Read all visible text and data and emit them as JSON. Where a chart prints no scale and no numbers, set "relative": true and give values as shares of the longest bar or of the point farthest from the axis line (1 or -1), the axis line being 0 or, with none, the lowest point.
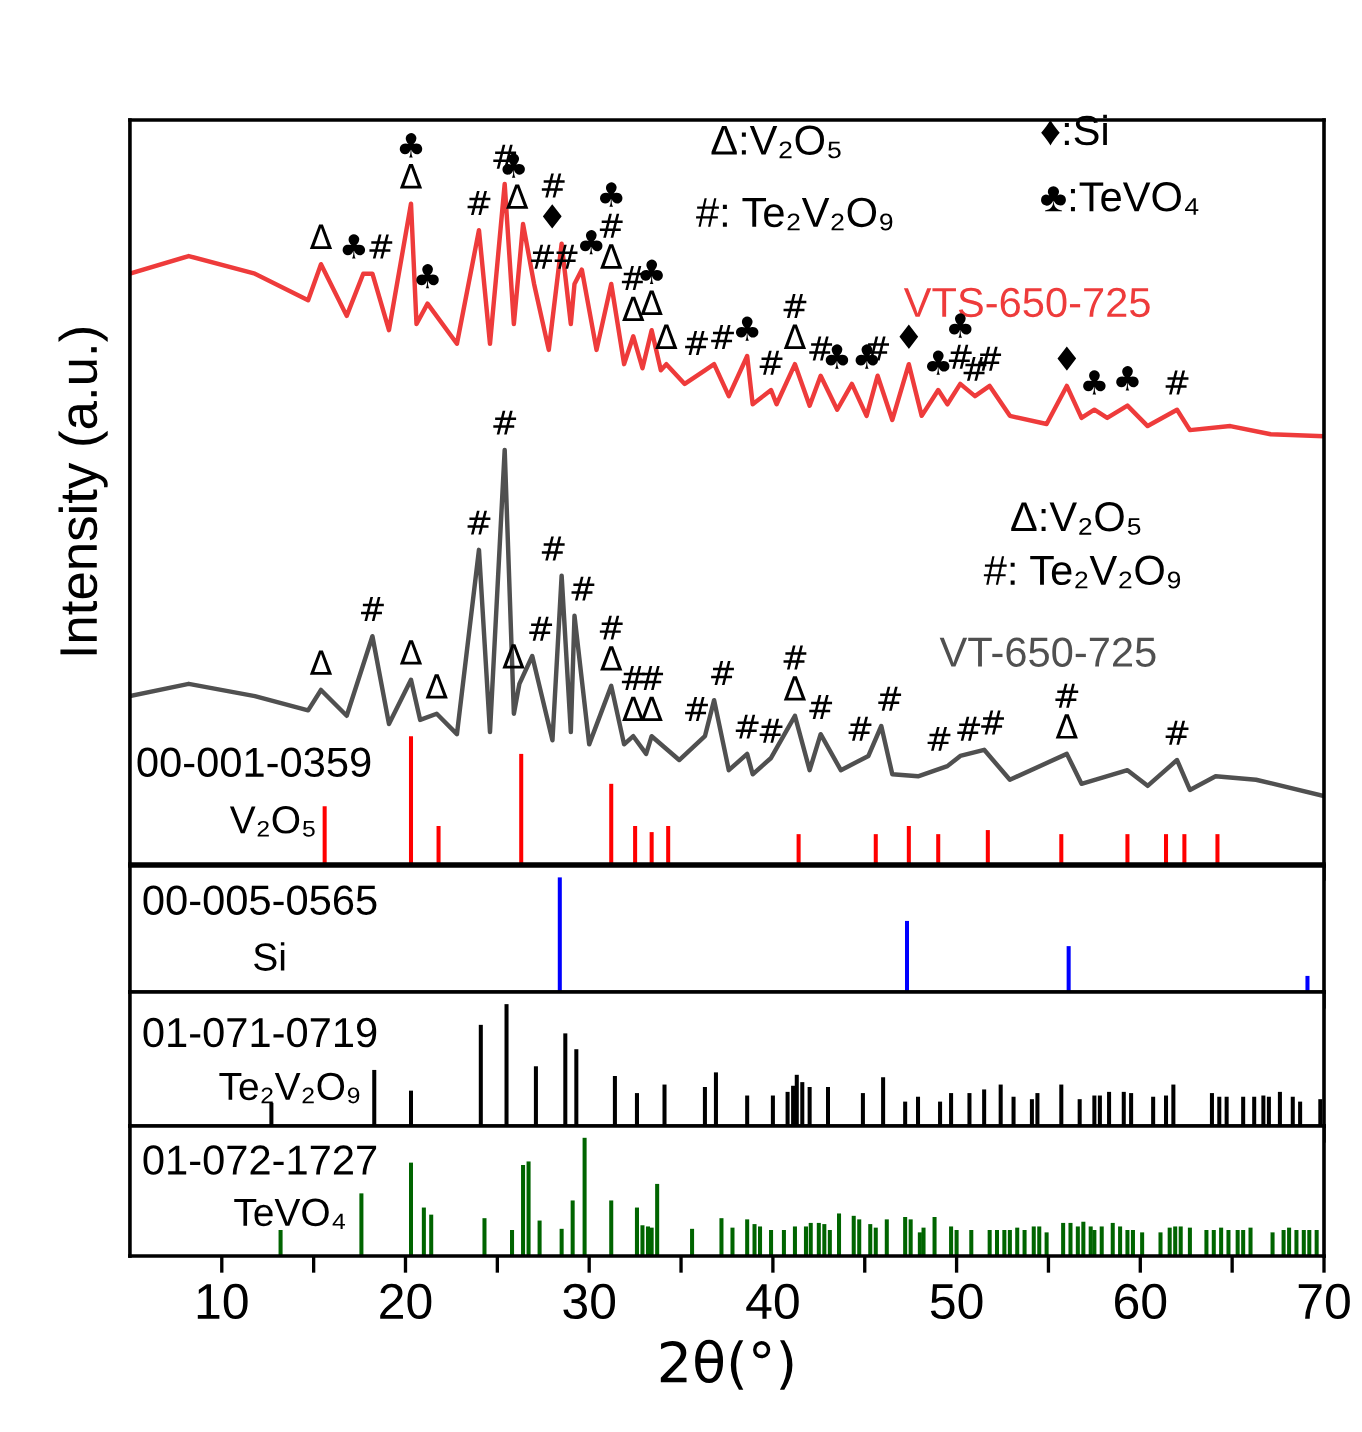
{
  "chart_data": [
    {
      "type": "line",
      "relative": true,
      "xlim": [
        5,
        70
      ],
      "xticks": [
        10,
        {
          "value": 15,
          "label": null
        },
        20,
        {
          "value": 25,
          "label": null
        },
        30,
        {
          "value": 35,
          "label": null
        },
        40,
        {
          "value": 45,
          "label": null
        },
        50,
        {
          "value": 55,
          "label": null
        },
        60,
        {
          "value": 65,
          "label": null
        },
        70
      ],
      "tick_labels": false,
      "ylabel": "Intensity (a.u.)",
      "series": [
        {
          "name": "VTS-650-725",
          "type": "line",
          "color": "#ee3b3b",
          "x": [
            5,
            8.2,
            11.8,
            14.7,
            15.4,
            16.8,
            17.7,
            18.2,
            19.1,
            20.3,
            20.6,
            21.2,
            22.8,
            24.0,
            24.6,
            25.4,
            25.9,
            26.4,
            27.0,
            27.8,
            28.5,
            29.0,
            29.2,
            29.6,
            30.4,
            31.2,
            31.9,
            32.4,
            32.9,
            33.4,
            33.9,
            34.2,
            35.2,
            36.3,
            36.8,
            37.6,
            38.6,
            38.9,
            39.9,
            40.2,
            41.2,
            42.0,
            42.6,
            43.5,
            44.3,
            45.1,
            45.7,
            46.5,
            47.4,
            48.1,
            49.0,
            49.5,
            50.2,
            51.0,
            51.8,
            52.9,
            54.9,
            56.0,
            56.8,
            57.5,
            58.2,
            59.3,
            60.4,
            62.0,
            62.7,
            64.9,
            67.1,
            70.0
          ],
          "values": [
            0.868,
            0.894,
            0.868,
            0.829,
            0.882,
            0.806,
            0.868,
            0.868,
            0.785,
            0.971,
            0.794,
            0.824,
            0.765,
            0.932,
            0.765,
            1.0,
            0.794,
            0.941,
            0.853,
            0.756,
            0.912,
            0.794,
            0.853,
            0.874,
            0.756,
            0.853,
            0.735,
            0.776,
            0.729,
            0.785,
            0.726,
            0.735,
            0.706,
            0.726,
            0.735,
            0.688,
            0.747,
            0.676,
            0.697,
            0.676,
            0.735,
            0.674,
            0.718,
            0.668,
            0.706,
            0.659,
            0.718,
            0.653,
            0.735,
            0.659,
            0.697,
            0.676,
            0.706,
            0.688,
            0.703,
            0.659,
            0.647,
            0.703,
            0.656,
            0.668,
            0.656,
            0.674,
            0.644,
            0.668,
            0.638,
            0.644,
            0.632,
            0.629
          ]
        },
        {
          "name": "VT-650-725",
          "type": "line",
          "color": "#505050",
          "x": [
            5,
            8.2,
            11.8,
            14.7,
            15.4,
            16.8,
            18.2,
            19.1,
            20.3,
            20.8,
            21.7,
            22.8,
            24.0,
            24.6,
            25.4,
            25.9,
            26.2,
            26.9,
            28.0,
            28.5,
            29.0,
            29.2,
            30.0,
            31.2,
            31.9,
            32.4,
            33.1,
            33.4,
            34.9,
            36.3,
            36.8,
            37.6,
            38.6,
            38.9,
            39.9,
            41.2,
            42.0,
            42.6,
            43.7,
            45.2,
            45.9,
            46.5,
            47.9,
            49.5,
            50.2,
            51.5,
            52.9,
            56.0,
            56.8,
            59.3,
            60.4,
            62.0,
            62.7,
            64.1,
            66.3,
            70.0
          ],
          "values": [
            0.247,
            0.265,
            0.247,
            0.226,
            0.256,
            0.218,
            0.335,
            0.206,
            0.271,
            0.212,
            0.221,
            0.191,
            0.462,
            0.194,
            0.609,
            0.221,
            0.265,
            0.306,
            0.182,
            0.424,
            0.194,
            0.365,
            0.176,
            0.262,
            0.176,
            0.188,
            0.162,
            0.188,
            0.153,
            0.188,
            0.241,
            0.138,
            0.162,
            0.132,
            0.156,
            0.218,
            0.138,
            0.191,
            0.138,
            0.159,
            0.203,
            0.132,
            0.129,
            0.144,
            0.159,
            0.168,
            0.124,
            0.162,
            0.118,
            0.138,
            0.115,
            0.153,
            0.109,
            0.129,
            0.124,
            0.1
          ]
        },
        {
          "name": "V₂O₅",
          "type": "bar",
          "color": "#ff0000",
          "x": [
            15.6,
            20.3,
            21.8,
            26.3,
            31.2,
            32.5,
            33.4,
            34.3,
            41.4,
            45.6,
            47.4,
            49.0,
            51.7,
            55.7,
            59.3,
            61.4,
            62.4,
            64.2
          ],
          "values": [
            0.085,
            0.188,
            0.056,
            0.162,
            0.118,
            0.056,
            0.047,
            0.056,
            0.044,
            0.044,
            0.056,
            0.044,
            0.05,
            0.044,
            0.044,
            0.044,
            0.044,
            0.044
          ]
        }
      ],
      "annotations": [
        "Δ:V₂O₅",
        "#: Te₂V₂O₉",
        "♦:Si",
        "♣:TeVO₄",
        "Δ:V₂O₅",
        "#: Te₂V₂O₉",
        "00-001-0359",
        {
          "text": "Δ",
          "x": 15.4,
          "y": 0.882
        },
        {
          "text": "♣",
          "x": 17.7,
          "y": 0.868
        },
        {
          "text": "#",
          "x": 18.2,
          "y": 0.868
        },
        {
          "text": "♣\nΔ",
          "x": 20.3,
          "y": 0.971
        },
        {
          "text": "♣",
          "x": 21.2,
          "y": 0.824
        },
        {
          "text": "#",
          "x": 24.0,
          "y": 0.932
        },
        {
          "text": "#",
          "x": 25.4,
          "y": 1.0
        },
        {
          "text": "♣\nΔ",
          "x": 26.4,
          "y": 0.941
        },
        {
          "text": "#",
          "x": 27.0,
          "y": 0.853
        },
        {
          "text": "#\n♦",
          "x": 28.5,
          "y": 0.912
        },
        {
          "text": "#",
          "x": 29.2,
          "y": 0.853
        },
        {
          "text": "♣",
          "x": 29.6,
          "y": 0.874
        },
        {
          "text": "♣\n#\nΔ",
          "x": 31.2,
          "y": 0.853
        },
        {
          "text": "#\nΔ",
          "x": 32.4,
          "y": 0.776
        },
        {
          "text": "♣\nΔ",
          "x": 33.4,
          "y": 0.785
        },
        {
          "text": "Δ",
          "x": 34.2,
          "y": 0.735
        },
        {
          "text": "#",
          "x": 36.3,
          "y": 0.726
        },
        {
          "text": "#",
          "x": 36.8,
          "y": 0.735
        },
        {
          "text": "♣",
          "x": 38.6,
          "y": 0.747
        },
        {
          "text": "#",
          "x": 39.9,
          "y": 0.697
        },
        {
          "text": "#\nΔ",
          "x": 41.2,
          "y": 0.735
        },
        {
          "text": "#",
          "x": 42.6,
          "y": 0.718
        },
        {
          "text": "♣♣",
          "x": 44.3,
          "y": 0.706
        },
        {
          "text": "#",
          "x": 45.7,
          "y": 0.718
        },
        {
          "text": "♦",
          "x": 47.4,
          "y": 0.735
        },
        {
          "text": "♣",
          "x": 49.0,
          "y": 0.697
        },
        {
          "text": "♣\n#",
          "x": 50.2,
          "y": 0.706
        },
        {
          "text": "#",
          "x": 51.0,
          "y": 0.688
        },
        {
          "text": "#",
          "x": 51.8,
          "y": 0.703
        },
        {
          "text": "♦",
          "x": 56.0,
          "y": 0.703
        },
        {
          "text": "♣",
          "x": 57.5,
          "y": 0.668
        },
        {
          "text": "♣",
          "x": 59.3,
          "y": 0.674
        },
        {
          "text": "#",
          "x": 62.0,
          "y": 0.668
        },
        {
          "text": "Δ",
          "x": 15.4,
          "y": 0.256
        },
        {
          "text": "#",
          "x": 18.2,
          "y": 0.335
        },
        {
          "text": "Δ",
          "x": 20.3,
          "y": 0.271
        },
        {
          "text": "Δ",
          "x": 21.7,
          "y": 0.221
        },
        {
          "text": "#",
          "x": 24.0,
          "y": 0.462
        },
        {
          "text": "#",
          "x": 25.4,
          "y": 0.609
        },
        {
          "text": "Δ",
          "x": 26.2,
          "y": 0.265
        },
        {
          "text": "#",
          "x": 26.9,
          "y": 0.306
        },
        {
          "text": "#",
          "x": 28.5,
          "y": 0.424
        },
        {
          "text": "#",
          "x": 29.2,
          "y": 0.365
        },
        {
          "text": "#\nΔ",
          "x": 31.2,
          "y": 0.262
        },
        {
          "text": "#\nΔ",
          "x": 32.4,
          "y": 0.188
        },
        {
          "text": "#\nΔ",
          "x": 33.4,
          "y": 0.188
        },
        {
          "text": "#",
          "x": 36.3,
          "y": 0.188
        },
        {
          "text": "#",
          "x": 36.8,
          "y": 0.241
        },
        {
          "text": "#",
          "x": 38.6,
          "y": 0.162
        },
        {
          "text": "#",
          "x": 39.9,
          "y": 0.156
        },
        {
          "text": "#\nΔ",
          "x": 41.2,
          "y": 0.218
        },
        {
          "text": "#",
          "x": 42.6,
          "y": 0.191
        },
        {
          "text": "#",
          "x": 45.2,
          "y": 0.159
        },
        {
          "text": "#",
          "x": 45.9,
          "y": 0.203
        },
        {
          "text": "#",
          "x": 49.5,
          "y": 0.144
        },
        {
          "text": "#",
          "x": 50.2,
          "y": 0.159
        },
        {
          "text": "#",
          "x": 51.5,
          "y": 0.168
        },
        {
          "text": "#\nΔ",
          "x": 56.0,
          "y": 0.162
        },
        {
          "text": "#",
          "x": 62.0,
          "y": 0.153
        }
      ]
    },
    {
      "type": "bar",
      "relative": true,
      "xlim": [
        5,
        70
      ],
      "xticks": [
        10,
        {
          "value": 15,
          "label": null
        },
        20,
        {
          "value": 25,
          "label": null
        },
        30,
        {
          "value": 35,
          "label": null
        },
        40,
        {
          "value": 45,
          "label": null
        },
        50,
        {
          "value": 55,
          "label": null
        },
        60,
        {
          "value": 65,
          "label": null
        },
        70
      ],
      "tick_labels": false,
      "series": [
        {
          "name": "Si",
          "color": "#0000ff",
          "x": [
            28.4,
            47.3,
            56.1,
            69.1
          ],
          "values": [
            1.0,
            0.62,
            0.4,
            0.14
          ]
        }
      ],
      "annotations": [
        "00-005-0565"
      ]
    },
    {
      "type": "bar",
      "relative": true,
      "xlim": [
        5,
        70
      ],
      "xticks": [
        10,
        {
          "value": 15,
          "label": null
        },
        20,
        {
          "value": 25,
          "label": null
        },
        30,
        {
          "value": 35,
          "label": null
        },
        40,
        {
          "value": 45,
          "label": null
        },
        50,
        {
          "value": 55,
          "label": null
        },
        60,
        {
          "value": 65,
          "label": null
        },
        70
      ],
      "tick_labels": false,
      "series": [
        {
          "name": "Te₂V₂O₉",
          "color": "#000000",
          "x": [
            12.7,
            18.3,
            20.3,
            24.1,
            25.5,
            27.1,
            28.7,
            29.3,
            31.4,
            32.6,
            34.1,
            36.3,
            36.9,
            38.6,
            40.0,
            40.8,
            41.1,
            41.3,
            41.6,
            42.0,
            43.0,
            44.9,
            46.0,
            47.2,
            47.9,
            49.1,
            49.7,
            50.7,
            51.5,
            52.4,
            53.1,
            54.1,
            54.4,
            55.7,
            56.7,
            57.5,
            57.8,
            58.3,
            59.1,
            59.5,
            60.7,
            61.4,
            61.8,
            63.9,
            64.3,
            64.7,
            65.6,
            66.2,
            66.7,
            67.0,
            67.6,
            68.3,
            68.7,
            69.8
          ],
          "values": [
            0.19,
            0.46,
            0.29,
            0.83,
            1.0,
            0.49,
            0.76,
            0.63,
            0.41,
            0.27,
            0.34,
            0.32,
            0.44,
            0.25,
            0.25,
            0.28,
            0.33,
            0.42,
            0.36,
            0.32,
            0.32,
            0.27,
            0.4,
            0.2,
            0.24,
            0.2,
            0.27,
            0.27,
            0.3,
            0.34,
            0.24,
            0.22,
            0.27,
            0.34,
            0.22,
            0.25,
            0.25,
            0.28,
            0.28,
            0.27,
            0.24,
            0.25,
            0.34,
            0.27,
            0.24,
            0.24,
            0.24,
            0.24,
            0.25,
            0.24,
            0.28,
            0.24,
            0.2,
            0.22
          ]
        }
      ],
      "annotations": [
        "01-071-0719"
      ]
    },
    {
      "type": "bar",
      "relative": true,
      "xlim": [
        5,
        70
      ],
      "xticks": [
        10,
        {
          "value": 15,
          "label": null
        },
        20,
        {
          "value": 25,
          "label": null
        },
        30,
        {
          "value": 35,
          "label": null
        },
        40,
        {
          "value": 45,
          "label": null
        },
        50,
        {
          "value": 55,
          "label": null
        },
        60,
        {
          "value": 65,
          "label": null
        },
        70
      ],
      "tick_labels": "x",
      "xlabel": "2θ(°)",
      "series": [
        {
          "name": "TeVO₄",
          "color": "#006400",
          "x": [
            13.2,
            17.6,
            20.3,
            21.0,
            21.4,
            24.3,
            25.8,
            26.4,
            26.7,
            27.3,
            28.5,
            29.1,
            29.75,
            31.2,
            32.6,
            32.9,
            33.2,
            33.4,
            33.7,
            35.6,
            37.2,
            37.8,
            38.6,
            39.0,
            39.3,
            39.9,
            40.6,
            41.2,
            41.8,
            42.06,
            42.5,
            42.8,
            43.1,
            43.6,
            44.4,
            44.7,
            45.3,
            45.6,
            46.2,
            47.2,
            47.5,
            48.0,
            48.2,
            48.8,
            49.7,
            50.0,
            50.8,
            51.8,
            52.2,
            52.6,
            52.9,
            53.3,
            53.7,
            54.2,
            54.5,
            54.9,
            55.8,
            56.2,
            56.6,
            56.9,
            57.3,
            57.5,
            57.9,
            58.5,
            58.9,
            59.3,
            59.6,
            60.1,
            61.1,
            61.6,
            61.9,
            62.2,
            62.7,
            63.6,
            64.0,
            64.4,
            64.8,
            65.3,
            65.6,
            66.0,
            67.2,
            67.8,
            68.1,
            68.5,
            68.9,
            69.2,
            69.6
          ],
          "values": [
            0.22,
            0.53,
            0.79,
            0.41,
            0.35,
            0.32,
            0.22,
            0.77,
            0.8,
            0.3,
            0.23,
            0.47,
            1.0,
            0.47,
            0.41,
            0.26,
            0.25,
            0.24,
            0.61,
            0.23,
            0.32,
            0.24,
            0.31,
            0.27,
            0.25,
            0.22,
            0.22,
            0.25,
            0.25,
            0.28,
            0.28,
            0.27,
            0.22,
            0.36,
            0.34,
            0.31,
            0.27,
            0.24,
            0.31,
            0.33,
            0.31,
            0.2,
            0.24,
            0.33,
            0.25,
            0.22,
            0.22,
            0.22,
            0.22,
            0.22,
            0.22,
            0.24,
            0.22,
            0.25,
            0.25,
            0.2,
            0.28,
            0.28,
            0.25,
            0.29,
            0.25,
            0.22,
            0.25,
            0.28,
            0.25,
            0.22,
            0.22,
            0.2,
            0.2,
            0.24,
            0.25,
            0.25,
            0.24,
            0.22,
            0.22,
            0.24,
            0.22,
            0.22,
            0.22,
            0.24,
            0.2,
            0.22,
            0.24,
            0.22,
            0.22,
            0.22,
            0.22
          ]
        }
      ],
      "annotations": [
        "01-072-1727"
      ]
    }
  ]
}
